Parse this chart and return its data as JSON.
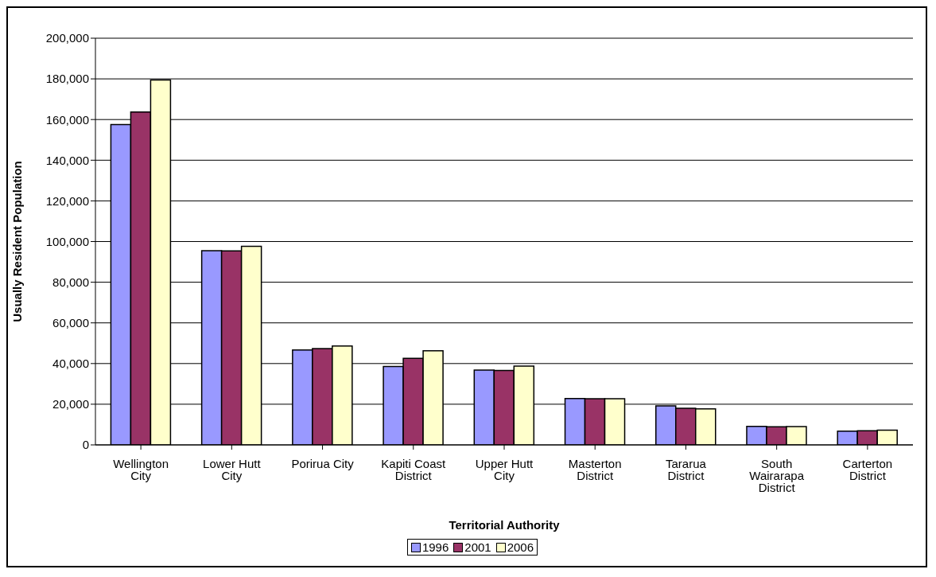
{
  "chart_data": {
    "type": "bar",
    "xlabel": "Territorial Authority",
    "ylabel": "Usually Resident Population",
    "categories": [
      "Wellington City",
      "Lower Hutt City",
      "Porirua City",
      "Kapiti Coast District",
      "Upper Hutt City",
      "Masterton District",
      "Tararua District",
      "South Wairarapa District",
      "Carterton District"
    ],
    "series": [
      {
        "name": "1996",
        "color": "#9999ff",
        "values": [
          157500,
          95500,
          46700,
          38600,
          36800,
          22800,
          19200,
          9100,
          6800
        ]
      },
      {
        "name": "2001",
        "color": "#993366",
        "values": [
          163700,
          95400,
          47400,
          42600,
          36600,
          22700,
          18000,
          8900,
          6900
        ]
      },
      {
        "name": "2006",
        "color": "#ffffcc",
        "values": [
          179500,
          97700,
          48600,
          46300,
          38700,
          22700,
          17700,
          9000,
          7200
        ]
      }
    ],
    "ylim": [
      0,
      200000
    ],
    "yticks": [
      0,
      {
        "value": 20000,
        "label": "20,000"
      },
      {
        "value": 40000,
        "label": "40,000"
      },
      {
        "value": 60000,
        "label": "60,000"
      },
      {
        "value": 80000,
        "label": "80,000"
      },
      {
        "value": 100000,
        "label": "100,000"
      },
      {
        "value": 120000,
        "label": "120,000"
      },
      {
        "value": 140000,
        "label": "140,000"
      },
      {
        "value": 160000,
        "label": "160,000"
      },
      {
        "value": 180000,
        "label": "180,000"
      },
      {
        "value": 200000,
        "label": "200,000"
      }
    ],
    "grid": "y",
    "legend": "bottom"
  }
}
